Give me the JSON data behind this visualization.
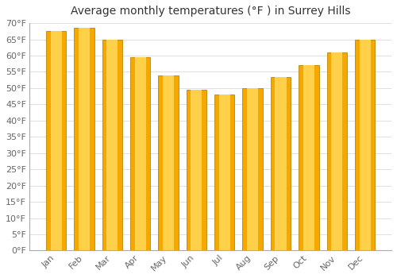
{
  "title": "Average monthly temperatures (°F ) in Surrey Hills",
  "months": [
    "Jan",
    "Feb",
    "Mar",
    "Apr",
    "May",
    "Jun",
    "Jul",
    "Aug",
    "Sep",
    "Oct",
    "Nov",
    "Dec"
  ],
  "values": [
    67.5,
    68.5,
    65.0,
    59.5,
    54.0,
    49.5,
    48.0,
    50.0,
    53.5,
    57.0,
    61.0,
    65.0
  ],
  "bar_color_center": "#FFD04A",
  "bar_color_edge": "#F5A800",
  "bar_edge_color": "#B8860B",
  "background_color": "#FFFFFF",
  "plot_bg_color": "#FFFFFF",
  "grid_color": "#E0E0E0",
  "ylim": [
    0,
    70
  ],
  "ytick_step": 5,
  "title_fontsize": 10,
  "tick_fontsize": 8,
  "tick_color": "#666666",
  "title_color": "#333333",
  "bar_width": 0.72
}
